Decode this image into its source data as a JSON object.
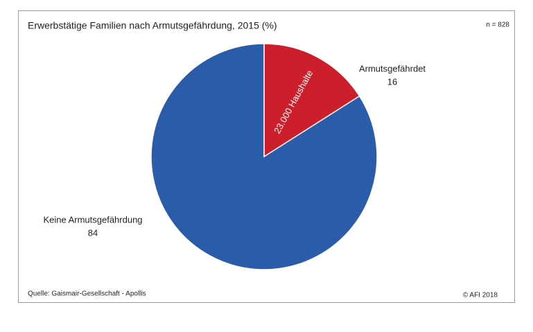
{
  "chart_data": {
    "type": "pie",
    "title": "Erwerbstätige Familien nach Armutsgefährdung, 2015 (%)",
    "sample_size": "n = 828",
    "categories": [
      "Armutsgefährdet",
      "Keine Armutsgefährdung"
    ],
    "values": [
      16,
      84
    ],
    "colors": [
      "#cc1f2b",
      "#2a5caa"
    ],
    "annotation": "23.000 Haushalte",
    "source": "Quelle: Gaismair-Gesellschaft - Apollis",
    "copyright": "© AFI 2018"
  }
}
